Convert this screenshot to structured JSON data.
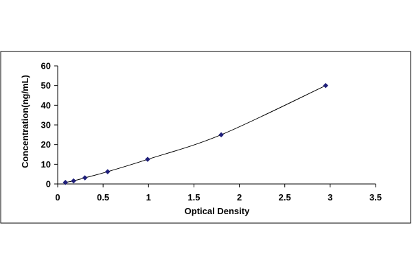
{
  "chart_data": {
    "type": "scatter",
    "title": "",
    "xlabel": "Optical Density",
    "ylabel": "Concentration(ng/mL)",
    "xlim": [
      0,
      3.5
    ],
    "ylim": [
      0,
      60
    ],
    "xticks": [
      "0",
      "0.5",
      "1",
      "1.5",
      "2",
      "2.5",
      "3",
      "3.5"
    ],
    "yticks": [
      "0",
      "10",
      "20",
      "30",
      "40",
      "50",
      "60"
    ],
    "grid": false,
    "legend": "none",
    "series": [
      {
        "x": [
          0.085,
          0.175,
          0.3,
          0.55,
          0.99,
          1.8,
          2.95
        ],
        "y": [
          0.78,
          1.56,
          3.12,
          6.25,
          12.5,
          25,
          50
        ],
        "marker": "diamond",
        "trendline": "smooth"
      }
    ],
    "colors": {
      "marker": "#1f1f7a",
      "line": "#000000",
      "frame": "#000000"
    }
  }
}
